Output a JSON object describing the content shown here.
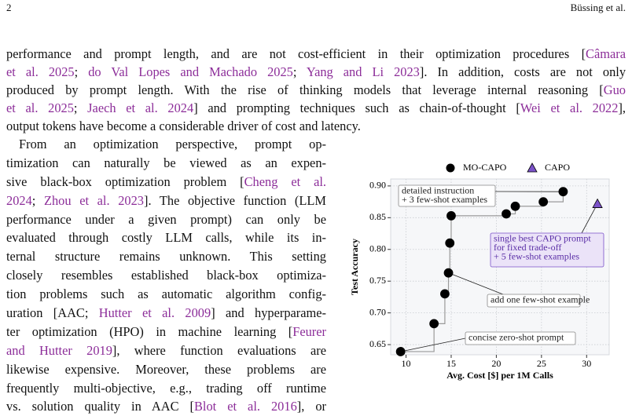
{
  "header": {
    "page": "2",
    "authors": "Büssing et al."
  },
  "paragraphs": [
    {
      "lines": [
        [
          "performance and prompt length, and are not cost-efficient in their optimization procedures [",
          {
            "link": "Câmara"
          }
        ],
        [
          {
            "link": "et al. 2025"
          },
          "; ",
          {
            "link": "do Val Lopes and Machado 2025"
          },
          "; ",
          {
            "link": "Yang and Li 2023"
          },
          "]. In addition, costs are not only"
        ],
        [
          "produced by prompt length. With the rise of thinking models that leverage internal reasoning [",
          {
            "link": "Guo"
          }
        ],
        [
          {
            "link": "et al. 2025"
          },
          "; ",
          {
            "link": "Jaech et al. 2024"
          },
          "] and prompting techniques such as chain-of-thought [",
          {
            "link": "Wei et al. 2022"
          },
          "],"
        ],
        [
          "output tokens have become a considerable driver of cost and latency."
        ]
      ]
    },
    {
      "lines": [
        [
          "From an optimization perspective, prompt op-"
        ],
        [
          "timization can naturally be viewed as an expen-"
        ],
        [
          "sive black-box optimization problem [",
          {
            "link": "Cheng et al."
          }
        ],
        [
          {
            "link": "2024"
          },
          "; ",
          {
            "link": "Zhou et al. 2023"
          },
          "]. The objective function (LLM"
        ],
        [
          "performance under a given prompt) can only be"
        ],
        [
          "evaluated through costly LLM calls, while its in-"
        ],
        [
          "ternal structure remains unknown. This setting"
        ],
        [
          "closely resembles established black-box optimiza-"
        ],
        [
          "tion problems such as automatic algorithm config-"
        ],
        [
          "uration [AAC; ",
          {
            "link": "Hutter et al. 2009"
          },
          "] and hyperparame-"
        ],
        [
          "ter optimization (HPO) in machine learning [",
          {
            "link": "Feurer"
          }
        ],
        [
          {
            "link": "and Hutter 2019"
          },
          "], where function evaluations are"
        ],
        [
          "likewise expensive. Moreover, these problems are"
        ],
        [
          "frequently multi-objective, e.g., trading off runtime"
        ],
        [
          "vs. solution quality in AAC [",
          {
            "link": "Blot et al. 2016"
          },
          "], or"
        ]
      ]
    }
  ],
  "chart_data": {
    "type": "scatter",
    "xlabel": "Avg. Cost [$] per 1M Calls",
    "ylabel": "Test Accuracy",
    "xlim": [
      8.3,
      32.5
    ],
    "ylim": [
      0.634,
      0.911
    ],
    "xticks": [
      10,
      15,
      20,
      25,
      30
    ],
    "yticks": [
      0.65,
      {
        "value": 0.7,
        "label": "0.70"
      },
      0.75,
      {
        "value": 0.8,
        "label": "0.80"
      },
      0.85,
      {
        "value": 0.9,
        "label": "0.90"
      }
    ],
    "grid": true,
    "legend": "top",
    "series": [
      {
        "name": "MO-CAPO",
        "color": "#000000",
        "marker": "circle",
        "x": [
          9.4,
          13.1,
          14.3,
          14.7,
          14.85,
          15.0,
          21.1,
          22.1,
          25.2,
          27.4
        ],
        "values": [
          0.639,
          0.683,
          0.73,
          0.763,
          0.81,
          0.853,
          0.856,
          0.868,
          0.875,
          0.891
        ]
      },
      {
        "name": "CAPO",
        "color": "#7b52c9",
        "marker": "triangle",
        "x": [
          31.2
        ],
        "values": [
          0.872
        ]
      }
    ],
    "annotations": [
      {
        "text": [
          "detailed instruction",
          "+ 3 few-shot examples"
        ]
      },
      {
        "text": [
          "single best CAPO prompt",
          "for fixed trade-off",
          "+ 5 few-shot examples"
        ]
      },
      {
        "text": [
          "add one few-shot example"
        ]
      },
      {
        "text": [
          "concise zero-shot prompt"
        ]
      }
    ]
  }
}
